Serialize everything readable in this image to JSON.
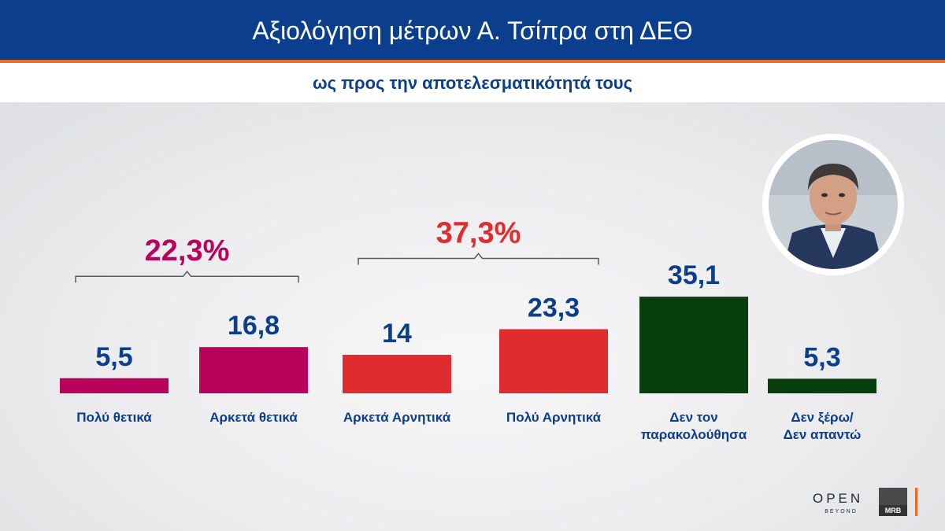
{
  "header": {
    "title": "Αξιολόγηση μέτρων Α. Τσίπρα στη ΔΕΘ",
    "subtitle": "ως προς την αποτελεσματικότητά τους"
  },
  "colors": {
    "header_blue": "#0b3f8e",
    "accent_orange": "#f06a1e",
    "positive": "#b8025c",
    "negative": "#e02b2f",
    "neutral": "#083d0e",
    "value_text": "#0b3f8e"
  },
  "chart_data": {
    "type": "bar",
    "title": "Αξιολόγηση μέτρων Α. Τσίπρα στη ΔΕΘ",
    "subtitle": "ως προς την αποτελεσματικότητά τους",
    "categories": [
      [
        "Πολύ θετικά"
      ],
      [
        "Αρκετά θετικά"
      ],
      [
        "Αρκετά Αρνητικά"
      ],
      [
        "Πολύ Αρνητικά"
      ],
      [
        "Δεν τον",
        "παρακολούθησα"
      ],
      [
        "Δεν ξέρω/",
        "Δεν απαντώ"
      ]
    ],
    "values": [
      5.5,
      16.8,
      14,
      23.3,
      35.1,
      5.3
    ],
    "value_labels": [
      "5,5",
      "16,8",
      "14",
      "23,3",
      "35,1",
      "5,3"
    ],
    "bar_colors": [
      "#b8025c",
      "#b8025c",
      "#e02b2f",
      "#e02b2f",
      "#083d0e",
      "#083d0e"
    ],
    "groups": [
      {
        "label": "22,3%",
        "value": 22.3,
        "from": 0,
        "to": 1,
        "color": "#b8025c"
      },
      {
        "label": "37,3%",
        "value": 37.3,
        "from": 2,
        "to": 3,
        "color": "#e02b2f"
      }
    ],
    "ylim": [
      0,
      40
    ],
    "grid": false,
    "legend": "none"
  },
  "branding": {
    "open_word": "OPEN",
    "open_tagline": "BEYOND",
    "mrb": "MRB"
  },
  "photo": {
    "icon": "politician-portrait"
  }
}
